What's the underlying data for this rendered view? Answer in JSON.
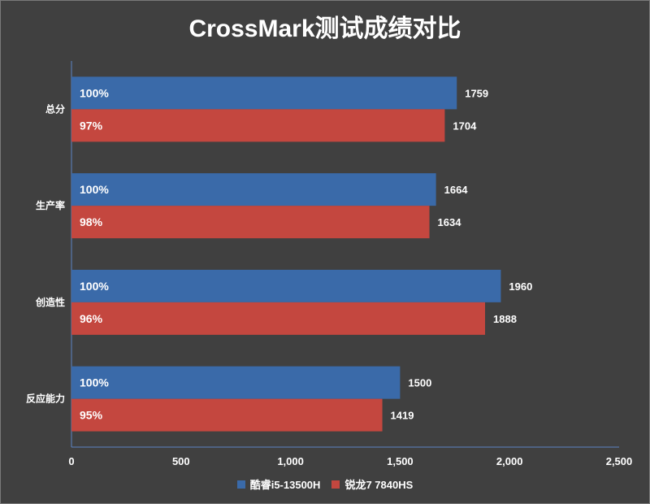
{
  "title": "CrossMark测试成绩对比",
  "colors": {
    "series1": "#3a6aa9",
    "series2": "#c4473f",
    "axis": "#5b84c4",
    "text": "#ffffff",
    "background": "#404040"
  },
  "chart_data": {
    "type": "bar",
    "orientation": "horizontal",
    "title": "CrossMark测试成绩对比",
    "categories": [
      "总分",
      "生产率",
      "创造性",
      "反应能力"
    ],
    "series": [
      {
        "name": "酷睿i5-13500H",
        "values": [
          1759,
          1664,
          1960,
          1500
        ],
        "labels": [
          "100%",
          "100%",
          "100%",
          "100%"
        ]
      },
      {
        "name": "锐龙7 7840HS",
        "values": [
          1704,
          1634,
          1888,
          1419
        ],
        "labels": [
          "97%",
          "98%",
          "96%",
          "95%"
        ]
      }
    ],
    "xlim": [
      0,
      2500
    ],
    "xticks": [
      "0",
      "500",
      "1,000",
      "1,500",
      "2,000",
      "2,500"
    ],
    "xlabel": "",
    "ylabel": "",
    "legend": "bottom",
    "grid": false
  },
  "legend": {
    "items": [
      "酷睿i5-13500H",
      "锐龙7 7840HS"
    ]
  }
}
